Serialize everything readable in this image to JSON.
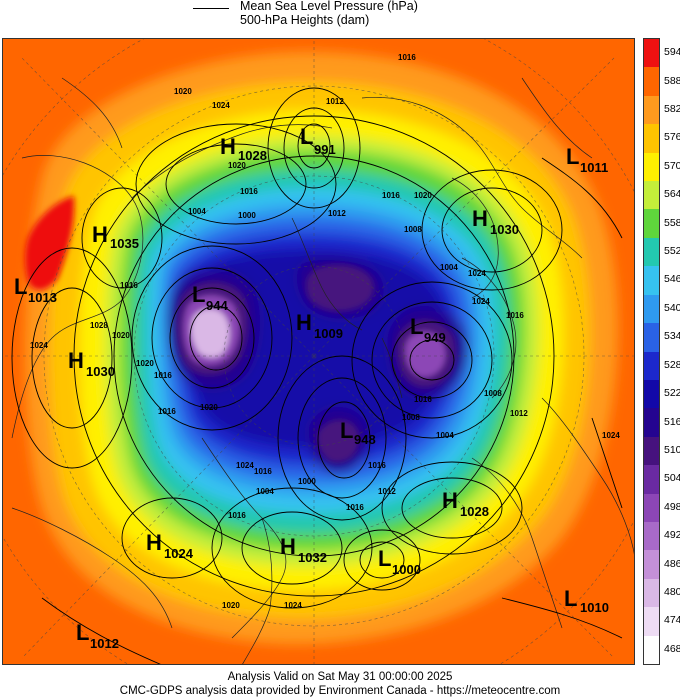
{
  "legend": {
    "items": [
      {
        "label": "Mean Sea Level Pressure (hPa)",
        "style": "line"
      },
      {
        "label": "500-hPa Heights (dam)",
        "style": "fill"
      }
    ]
  },
  "colorbar": {
    "levels": [
      "594",
      "588",
      "582",
      "576",
      "570",
      "564",
      "558",
      "552",
      "546",
      "540",
      "534",
      "528",
      "522",
      "516",
      "510",
      "504",
      "498",
      "492",
      "486",
      "480",
      "474",
      "468"
    ],
    "colors": [
      "#ee1111",
      "#ff6600",
      "#ff9a1e",
      "#ffc400",
      "#fff000",
      "#c4ee3a",
      "#5fd63c",
      "#23c8b0",
      "#36c2f0",
      "#2f9af0",
      "#2a62e6",
      "#1c28cc",
      "#1208a8",
      "#240490",
      "#46127e",
      "#6a2aa2",
      "#8c46b6",
      "#a86ac8",
      "#c490d8",
      "#dab8e6",
      "#eedcf4",
      "#ffffff"
    ]
  },
  "pressure_centers": [
    {
      "type": "H",
      "value": "1028",
      "name": "h-1028-north"
    },
    {
      "type": "L",
      "value": "991",
      "name": "l-991"
    },
    {
      "type": "L",
      "value": "1011",
      "name": "l-1011"
    },
    {
      "type": "H",
      "value": "1030",
      "name": "h-1030-east"
    },
    {
      "type": "H",
      "value": "1035",
      "name": "h-1035"
    },
    {
      "type": "L",
      "value": "1013",
      "name": "l-1013"
    },
    {
      "type": "L",
      "value": "944",
      "name": "l-944"
    },
    {
      "type": "H",
      "value": "1030",
      "name": "h-1030-west"
    },
    {
      "type": "H",
      "value": "1009",
      "name": "h-1009"
    },
    {
      "type": "L",
      "value": "949",
      "name": "l-949"
    },
    {
      "type": "L",
      "value": "948",
      "name": "l-948"
    },
    {
      "type": "H",
      "value": "1028",
      "name": "h-1028-southeast"
    },
    {
      "type": "H",
      "value": "1024",
      "name": "h-1024"
    },
    {
      "type": "H",
      "value": "1032",
      "name": "h-1032"
    },
    {
      "type": "L",
      "value": "1000",
      "name": "l-1000"
    },
    {
      "type": "L",
      "value": "1010",
      "name": "l-1010"
    },
    {
      "type": "L",
      "value": "1012",
      "name": "l-1012"
    }
  ],
  "isobar_labels": [
    "1016",
    "1020",
    "1024",
    "1012",
    "1016",
    "1020",
    "1004",
    "1000",
    "1024",
    "1016",
    "1012",
    "1016",
    "1020",
    "1028",
    "1024",
    "1008",
    "1004",
    "1016",
    "1020",
    "1024",
    "1020",
    "1016",
    "1012",
    "1008",
    "1004",
    "1024",
    "1016",
    "1020",
    "1016",
    "1008",
    "1000",
    "1024",
    "1004",
    "1012",
    "1016",
    "1020",
    "1024",
    "1016",
    "1016",
    "1016"
  ],
  "footer": {
    "line1": "Analysis Valid on Sat May 31 00:00:00 2025",
    "line2": "CMC-GDPS analysis data provided by Environment Canada - https://meteocentre.com"
  }
}
